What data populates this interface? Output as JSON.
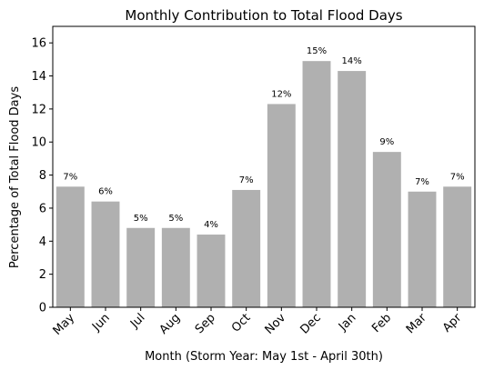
{
  "chart_data": {
    "type": "bar",
    "title": "Monthly Contribution to Total Flood Days",
    "xlabel": "Month (Storm Year: May 1st - April 30th)",
    "ylabel": "Percentage of Total Flood Days",
    "categories": [
      "May",
      "Jun",
      "Jul",
      "Aug",
      "Sep",
      "Oct",
      "Nov",
      "Dec",
      "Jan",
      "Feb",
      "Mar",
      "Apr"
    ],
    "values": [
      7.3,
      6.4,
      4.8,
      4.8,
      4.4,
      7.1,
      12.3,
      14.9,
      14.3,
      9.4,
      7.0,
      7.3
    ],
    "labels": [
      "7%",
      "6%",
      "5%",
      "5%",
      "4%",
      "7%",
      "12%",
      "15%",
      "14%",
      "9%",
      "7%",
      "7%"
    ],
    "ylim": [
      0,
      17
    ],
    "yticks": [
      0,
      2,
      4,
      6,
      8,
      10,
      12,
      14,
      16
    ],
    "bar_color": "#b0b0b0",
    "grid": false,
    "legend": "none"
  }
}
